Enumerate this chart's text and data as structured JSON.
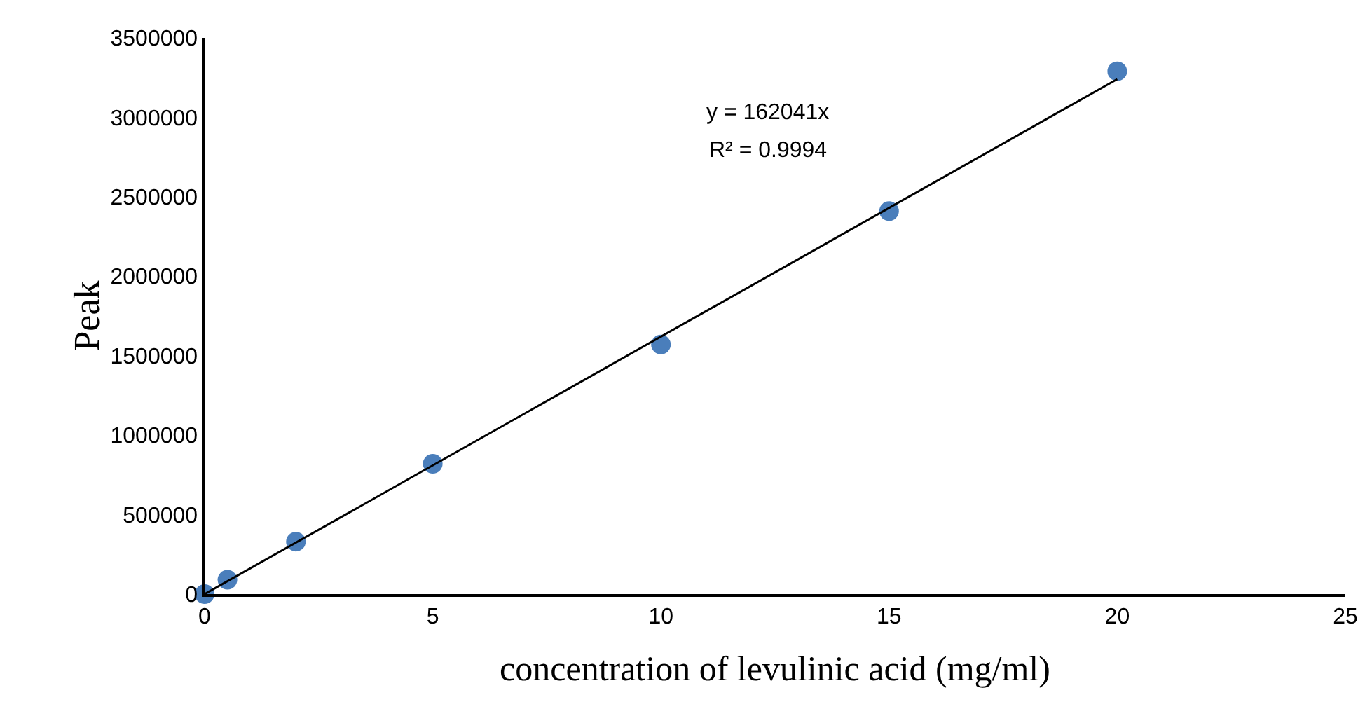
{
  "chart_data": {
    "type": "scatter",
    "xlabel": "concentration of levulinic acid (mg/ml)",
    "ylabel": "Peak",
    "annotations": [
      "y = 162041x",
      "R² = 0.9994"
    ],
    "x": [
      0,
      0.5,
      2,
      5,
      10,
      15,
      20
    ],
    "series": [
      {
        "color": "#4a7ebb",
        "marker": "circle",
        "values": [
          0,
          90000,
          330000,
          820000,
          1570000,
          2410000,
          3290000
        ]
      },
      {
        "type": "line",
        "color": "#000000",
        "marker": "none",
        "line_style": "solid",
        "x": [
          0,
          20
        ],
        "values": [
          0,
          3240000
        ]
      }
    ],
    "xlim": [
      0,
      25
    ],
    "xticks": [
      0,
      5,
      10,
      15,
      20,
      25
    ],
    "ylim": [
      0,
      3500000
    ],
    "yticks": [
      0,
      500000,
      1000000,
      1500000,
      2000000,
      2500000,
      3000000,
      3500000
    ],
    "grid": false
  }
}
